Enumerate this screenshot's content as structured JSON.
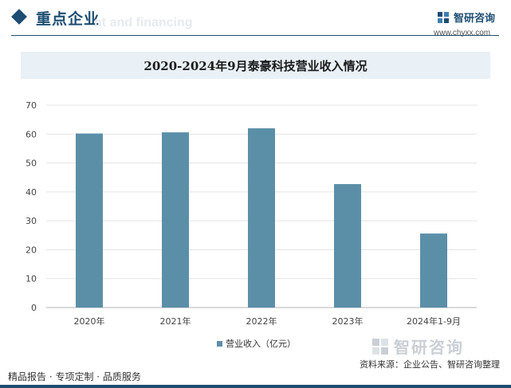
{
  "header": {
    "title": "重点企业",
    "ghost_text": "nt and financing"
  },
  "logo": {
    "name": "智研咨询",
    "url": "www.chyxx.com"
  },
  "chart_data": {
    "type": "bar",
    "title": "2020-2024年9月泰豪科技营业收入情况",
    "categories": [
      "2020年",
      "2021年",
      "2022年",
      "2023年",
      "2024年1-9月"
    ],
    "series": [
      {
        "name": "营业收入（亿元）",
        "values": [
          60.2,
          60.6,
          62.0,
          42.7,
          25.6
        ]
      }
    ],
    "ylim": [
      0,
      70
    ],
    "yticks": [
      0,
      10,
      20,
      30,
      40,
      50,
      60,
      70
    ],
    "grid": true,
    "legend": "bottom",
    "color": "#5b8fa8"
  },
  "watermark": {
    "name": "智研咨询"
  },
  "source": "资料来源：企业公告、智研咨询整理",
  "footer": {
    "text": "精品报告 · 专项定制 · 品质服务"
  }
}
